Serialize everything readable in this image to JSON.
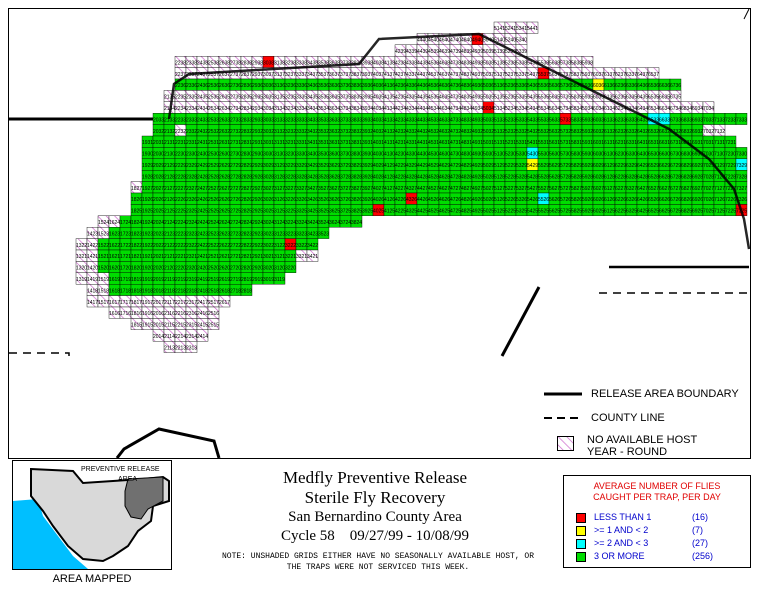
{
  "legend": {
    "release_area_boundary": "RELEASE AREA BOUNDARY",
    "county_line": "COUNTY LINE",
    "no_host_line1": "NO AVAILABLE HOST",
    "no_host_line2": "YEAR - ROUND"
  },
  "inset": {
    "label_line1": "PREVENTIVE RELEASE",
    "label_line2": "AREA",
    "caption": "AREA MAPPED"
  },
  "title": {
    "line1": "Medfly Preventive Release",
    "line2": "Sterile Fly Recovery",
    "line3": "San Bernardino County Area",
    "line4": "Cycle 58    09/27/99 - 10/08/99"
  },
  "note": "NOTE: UNSHADED GRIDS EITHER HAVE NO SEASONALLY AVAILABLE HOST, OR THE TRAPS WERE NOT SERVICED THIS WEEK.",
  "fly_legend": {
    "header_line1": "AVERAGE NUMBER OF FLIES",
    "header_line2": "CAUGHT PER TRAP, PER DAY",
    "items": [
      {
        "label": "LESS THAN 1",
        "count": "(16)",
        "color": "#ff0000"
      },
      {
        "label": ">= 1 AND < 2",
        "count": "(7)",
        "color": "#ffff00"
      },
      {
        "label": ">= 2 AND < 3",
        "count": "(27)",
        "color": "#00ffff"
      },
      {
        "label": "3 OR MORE",
        "count": "(256)",
        "color": "#00dd00"
      }
    ]
  },
  "map_colors": {
    "green": "#00dd00",
    "red": "#ff0000",
    "yellow": "#ffff00",
    "cyan": "#00ffff",
    "hatch": "#cc66cc",
    "county_gray": "#d9d9d9",
    "water": "#00bfff",
    "release_area": "#707070"
  },
  "grid_rows": [
    {
      "label": "41",
      "start_col": 33,
      "cells": "hhhh"
    },
    {
      "label": "40",
      "start_col": 26,
      "cells": "hhhhhRhhhh"
    },
    {
      "label": "39",
      "start_col": 24,
      "cells": "hhhhhhhhhhhh"
    },
    {
      "label": "38",
      "start_col": 4,
      "cells": "hhhhhhhhRhhhhhhhhhhhhhhhhhhhhhhhhhhhhh"
    },
    {
      "label": "37",
      "start_col": 4,
      "cells": "hhhhhhhhhhhhhhhhhhhhhhhhhhhhhhhhhRhhhhhhhhhh"
    },
    {
      "label": "36",
      "start_col": 4,
      "cells": "GGGGGGGGGGGGGGGGGGGGGGGGGGGGGGGGGGGGGGYGGGGGGG"
    },
    {
      "label": "35",
      "start_col": 3,
      "cells": "hhhhhhhhhhhhhhhhhhhhhhhhhhhhhhhhhhhhhhhhhhhhhhh"
    },
    {
      "label": "34",
      "start_col": 3,
      "cells": "hhhhhhhhhhhhhhhhhhhhhhhhhhhhhRhhhhhhhhhhhhhhhhhhhh"
    },
    {
      "label": "33",
      "start_col": 2,
      "cells": "GGGGGGGGGGGGGGGGGGGGGGGGGGGGGGGGGGGGGRGGGGGGGCCGGGGGGG"
    },
    {
      "label": "32",
      "start_col": 2,
      "cells": "GGhGGGGGGGGGGGGGGGGGGGGGGGGGGGGGGGGGGGGGGGGGGGGGGGhh"
    },
    {
      "label": "31",
      "start_col": 1,
      "cells": "GGGGGGGGGGGGGGGGGGGGGGGGGGGGGGGGGGGGGGGGGGGGGGGGGGGGGG"
    },
    {
      "label": "30",
      "start_col": 1,
      "cells": "GGGGGGGGGGGGGGGGGGGGGGGGGGGGGGGGGGGCGGGGGGGGGGGGGGGGGGG"
    },
    {
      "label": "29",
      "start_col": 1,
      "cells": "GGGGGGGGGGGGGGGGGGGGGGGGGGGGGGGGGGGYGGGGGGGGGGGGGGGGGGC"
    },
    {
      "label": "28",
      "start_col": 1,
      "cells": "GGGGGGGGGGGGGGGGGGGGGGGGGGGGGGGGGGGGGGGGGGGGGGGGGGGGGGG"
    },
    {
      "label": "27",
      "start_col": 0,
      "cells": "hGGGGGGGGGGGGGGGGGGGGGGGGGGGGGGGGGGGGGGGGGGGGGGGGGGGGGGGY"
    },
    {
      "label": "26",
      "start_col": 0,
      "cells": "GGGGGGGGGGGGGGGGGGGGGGGGGRGGGGGGGGGGGCGGGGGGGGGGGGGGGGGGC"
    },
    {
      "label": "25",
      "start_col": 0,
      "cells": "GGGGGGGGGGGGGGGGGGGGGGRGGGGGGGGGGGGGGGGGGGGGGGGGGGGGGGGRRR"
    },
    {
      "label": "24",
      "start_col": -3,
      "cells": "hhGGGGGGGGGGGGGGGGGGGGGG"
    },
    {
      "label": "23",
      "start_col": -4,
      "cells": "hhGGGGGGGGGGGGGGGGGGGG"
    },
    {
      "label": "22",
      "start_col": -5,
      "cells": "hhGGGGGGGGGGGGGGGGGRGG"
    },
    {
      "label": "21",
      "start_col": -5,
      "cells": "hhGGGGGGGGGGGGGGGGGGhh"
    },
    {
      "label": "20",
      "start_col": -5,
      "cells": "hhGGGGGGGGGGGGGGGGGG"
    },
    {
      "label": "19",
      "start_col": -5,
      "cells": "hhhGGGGGGGGGGGGGGGG"
    },
    {
      "label": "18",
      "start_col": -4,
      "cells": "hhGGGGGGGGGGGGG"
    },
    {
      "label": "17",
      "start_col": -4,
      "cells": "hhhhhhhhhhhhh"
    },
    {
      "label": "16",
      "start_col": -2,
      "cells": "hhhhhhhhhh"
    },
    {
      "label": "15",
      "start_col": 0,
      "cells": "hhhhhhhh"
    },
    {
      "label": "14",
      "start_col": 2,
      "cells": "hhhhh"
    },
    {
      "label": "13",
      "start_col": 3,
      "cells": "hhh"
    }
  ]
}
